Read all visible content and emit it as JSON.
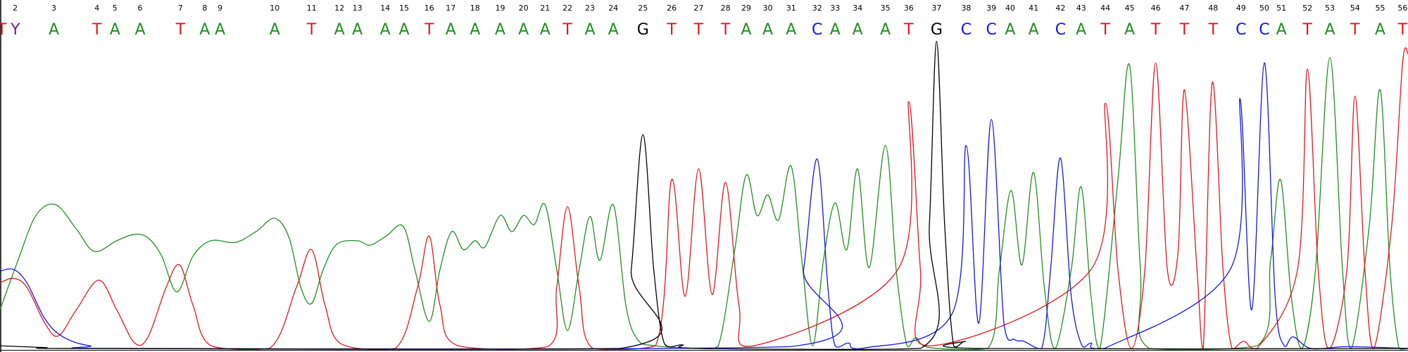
{
  "chart_data": {
    "type": "chromatogram",
    "xlim": [
      0,
      1568
    ],
    "ylim": [
      0,
      350
    ],
    "base_colors": {
      "A": "#1f8f1f",
      "T": "#e8141a",
      "C": "#1414e6",
      "G": "#000000",
      "Y": "#7a1a8a"
    },
    "bases": [
      "T",
      "Y",
      "A",
      "T",
      "A",
      "A",
      "T",
      "A",
      "A",
      "A",
      "T",
      "A",
      "A",
      "A",
      "A",
      "T",
      "A",
      "A",
      "A",
      "A",
      "A",
      "T",
      "A",
      "A",
      "G",
      "T",
      "T",
      "T",
      "A",
      "A",
      "A",
      "C",
      "A",
      "A",
      "A",
      "T",
      "G",
      "C",
      "C",
      "A",
      "A",
      "C",
      "A",
      "T",
      "A",
      "T",
      "T",
      "T",
      "C",
      "C",
      "A",
      "T",
      "A",
      "T",
      "A",
      "T"
    ],
    "positions": [
      null,
      2,
      3,
      4,
      5,
      6,
      7,
      8,
      9,
      10,
      11,
      12,
      13,
      14,
      15,
      16,
      17,
      18,
      19,
      20,
      21,
      22,
      23,
      24,
      25,
      26,
      27,
      28,
      29,
      30,
      31,
      32,
      33,
      34,
      35,
      36,
      37,
      38,
      39,
      40,
      41,
      42,
      43,
      44,
      45,
      46,
      47,
      48,
      49,
      50,
      51,
      52,
      53,
      54,
      55,
      56
    ],
    "base_x": [
      2,
      17,
      60,
      108,
      128,
      156,
      201,
      228,
      245,
      306,
      347,
      378,
      398,
      429,
      450,
      478,
      502,
      529,
      557,
      583,
      607,
      632,
      657,
      683,
      716,
      748,
      778,
      808,
      831,
      855,
      881,
      910,
      930,
      955,
      986,
      1012,
      1043,
      1076,
      1104,
      1125,
      1151,
      1181,
      1204,
      1231,
      1258,
      1287,
      1319,
      1351,
      1382,
      1408,
      1427,
      1456,
      1481,
      1509,
      1537,
      1562
    ],
    "series": [
      {
        "name": "A",
        "x": [
          0,
          20,
          40,
          62,
          85,
          105,
          130,
          150,
          165,
          180,
          197,
          215,
          235,
          262,
          285,
          306,
          322,
          335,
          347,
          360,
          375,
          398,
          412,
          430,
          449,
          462,
          478,
          490,
          503,
          516,
          529,
          540,
          557,
          570,
          583,
          595,
          607,
          620,
          632,
          645,
          657,
          668,
          683,
          697,
          710,
          730,
          780,
          800,
          818,
          831,
          843,
          855,
          867,
          881,
          893,
          905,
          917,
          930,
          943,
          955,
          968,
          986,
          998,
          1010,
          1020,
          1035,
          1100,
          1113,
          1126,
          1138,
          1151,
          1163,
          1175,
          1193,
          1204,
          1215,
          1225,
          1245,
          1258,
          1270,
          1280,
          1400,
          1415,
          1426,
          1438,
          1450,
          1465,
          1481,
          1495,
          1505,
          1525,
          1537,
          1548,
          1558,
          1568
        ],
        "values": [
          45,
          100,
          150,
          162,
          135,
          110,
          122,
          129,
          125,
          105,
          65,
          105,
          122,
          120,
          132,
          147,
          125,
          70,
          52,
          90,
          118,
          122,
          117,
          127,
          138,
          90,
          32,
          90,
          132,
          112,
          122,
          115,
          150,
          132,
          150,
          140,
          162,
          90,
          22,
          90,
          149,
          100,
          162,
          50,
          12,
          5,
          2,
          5,
          110,
          195,
          150,
          173,
          145,
          205,
          100,
          5,
          100,
          164,
          112,
          202,
          92,
          228,
          90,
          5,
          14,
          3,
          2,
          90,
          178,
          95,
          198,
          70,
          2,
          90,
          182,
          60,
          2,
          190,
          317,
          90,
          2,
          5,
          100,
          190,
          60,
          2,
          90,
          326,
          90,
          2,
          140,
          290,
          90,
          2,
          2
        ]
      },
      {
        "name": "T",
        "x": [
          0,
          15,
          30,
          50,
          65,
          85,
          110,
          130,
          150,
          165,
          185,
          200,
          215,
          235,
          300,
          330,
          347,
          362,
          380,
          440,
          465,
          478,
          490,
          510,
          610,
          620,
          632,
          645,
          660,
          730,
          748,
          763,
          778,
          793,
          808,
          823,
          840,
          1000,
          1012,
          1025,
          1035,
          1215,
          1231,
          1245,
          1260,
          1275,
          1287,
          1300,
          1312,
          1319,
          1333,
          1340,
          1350,
          1362,
          1372,
          1385,
          1400,
          1445,
          1456,
          1468,
          1480,
          1500,
          1509,
          1520,
          1530,
          1550,
          1562,
          1568
        ],
        "values": [
          75,
          80,
          70,
          30,
          16,
          45,
          78,
          45,
          8,
          15,
          70,
          95,
          50,
          5,
          2,
          70,
          112,
          50,
          7,
          2,
          70,
          127,
          50,
          5,
          4,
          70,
          160,
          70,
          2,
          5,
          190,
          60,
          202,
          62,
          187,
          50,
          5,
          90,
          277,
          90,
          5,
          90,
          275,
          90,
          2,
          90,
          320,
          90,
          110,
          290,
          90,
          2,
          298,
          90,
          2,
          10,
          2,
          90,
          313,
          90,
          2,
          90,
          283,
          90,
          2,
          140,
          320,
          330
        ]
      },
      {
        "name": "C",
        "x": [
          0,
          15,
          30,
          50,
          70,
          100,
          150,
          880,
          895,
          910,
          922,
          930,
          945,
          960,
          1060,
          1076,
          1090,
          1104,
          1118,
          1130,
          1140,
          1160,
          1170,
          1181,
          1193,
          1205,
          1215,
          1230,
          1370,
          1381,
          1394,
          1408,
          1420,
          1430,
          1440,
          1460,
          1500,
          1568
        ],
        "values": [
          88,
          90,
          75,
          35,
          15,
          5,
          2,
          4,
          90,
          213,
          70,
          5,
          8,
          2,
          40,
          228,
          30,
          257,
          30,
          12,
          10,
          2,
          90,
          214,
          60,
          5,
          8,
          2,
          90,
          280,
          45,
          320,
          60,
          5,
          15,
          2,
          4,
          2
        ]
      },
      {
        "name": "G",
        "x": [
          0,
          50,
          100,
          690,
          703,
          716,
          728,
          740,
          760,
          780,
          1025,
          1035,
          1043,
          1052,
          1062,
          1075,
          1090,
          1568
        ],
        "values": [
          5,
          3,
          2,
          2,
          90,
          240,
          90,
          7,
          6,
          2,
          2,
          140,
          344,
          140,
          5,
          10,
          2,
          2
        ]
      }
    ]
  }
}
